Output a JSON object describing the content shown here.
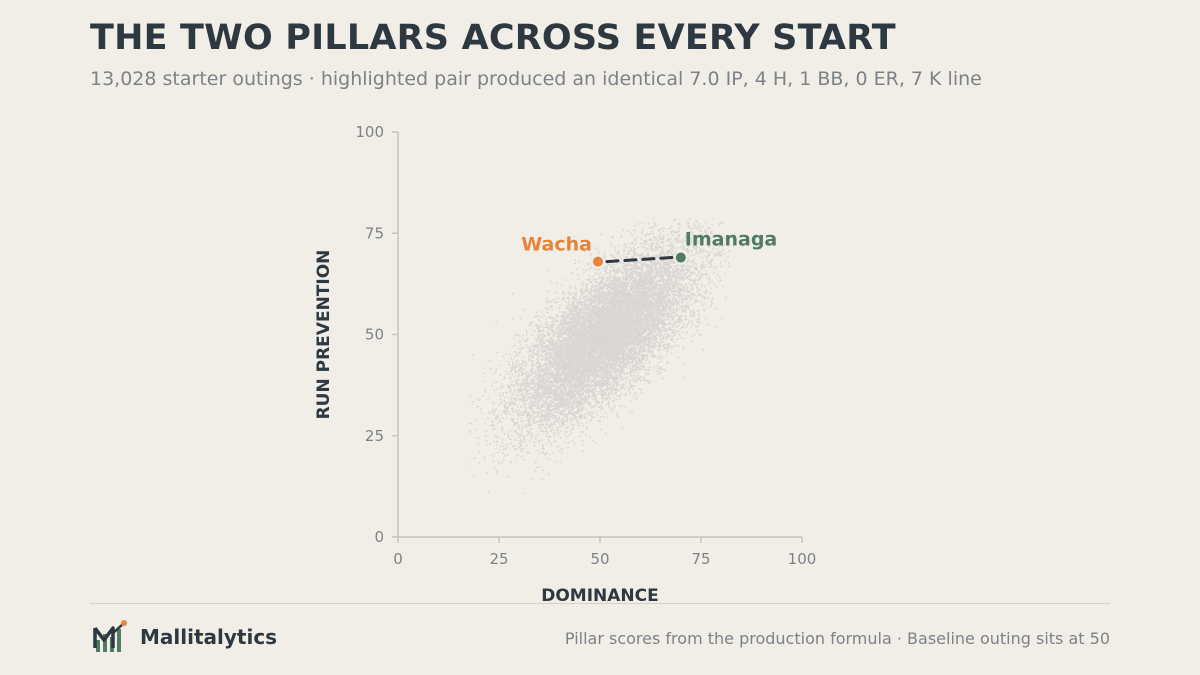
{
  "header": {
    "title": "THE TWO PILLARS ACROSS EVERY START",
    "subtitle": "13,028 starter outings · highlighted pair produced an identical 7.0 IP, 4 H, 1 BB, 0 ER, 7 K line"
  },
  "footer": {
    "brand": "Mallitalytics",
    "note": "Pillar scores from the production formula · Baseline outing sits at 50"
  },
  "colors": {
    "background": "#f1eee8",
    "text": "#2d3840",
    "muted": "#7d8286",
    "cloud": "#3a4148",
    "wacha": "#e8843a",
    "imanaga": "#4f7c62",
    "connector": "#2d3840"
  },
  "chart_data": {
    "type": "scatter",
    "title": "",
    "xlabel": "DOMINANCE",
    "ylabel": "RUN PREVENTION",
    "xlim": [
      0,
      100
    ],
    "ylim": [
      0,
      100
    ],
    "xticks": [
      0,
      25,
      50,
      75,
      100
    ],
    "yticks": [
      0,
      25,
      50,
      75,
      100
    ],
    "grid": false,
    "legend": "none",
    "population": {
      "count": 13028,
      "center": [
        51,
        50
      ],
      "spread": [
        11,
        11
      ],
      "correlation": 0.72,
      "x_range": [
        17,
        82
      ],
      "y_range": [
        7,
        79
      ]
    },
    "highlights": [
      {
        "name": "Wacha",
        "x": 49.5,
        "y": 68
      },
      {
        "name": "Imanaga",
        "x": 70,
        "y": 69
      }
    ]
  }
}
